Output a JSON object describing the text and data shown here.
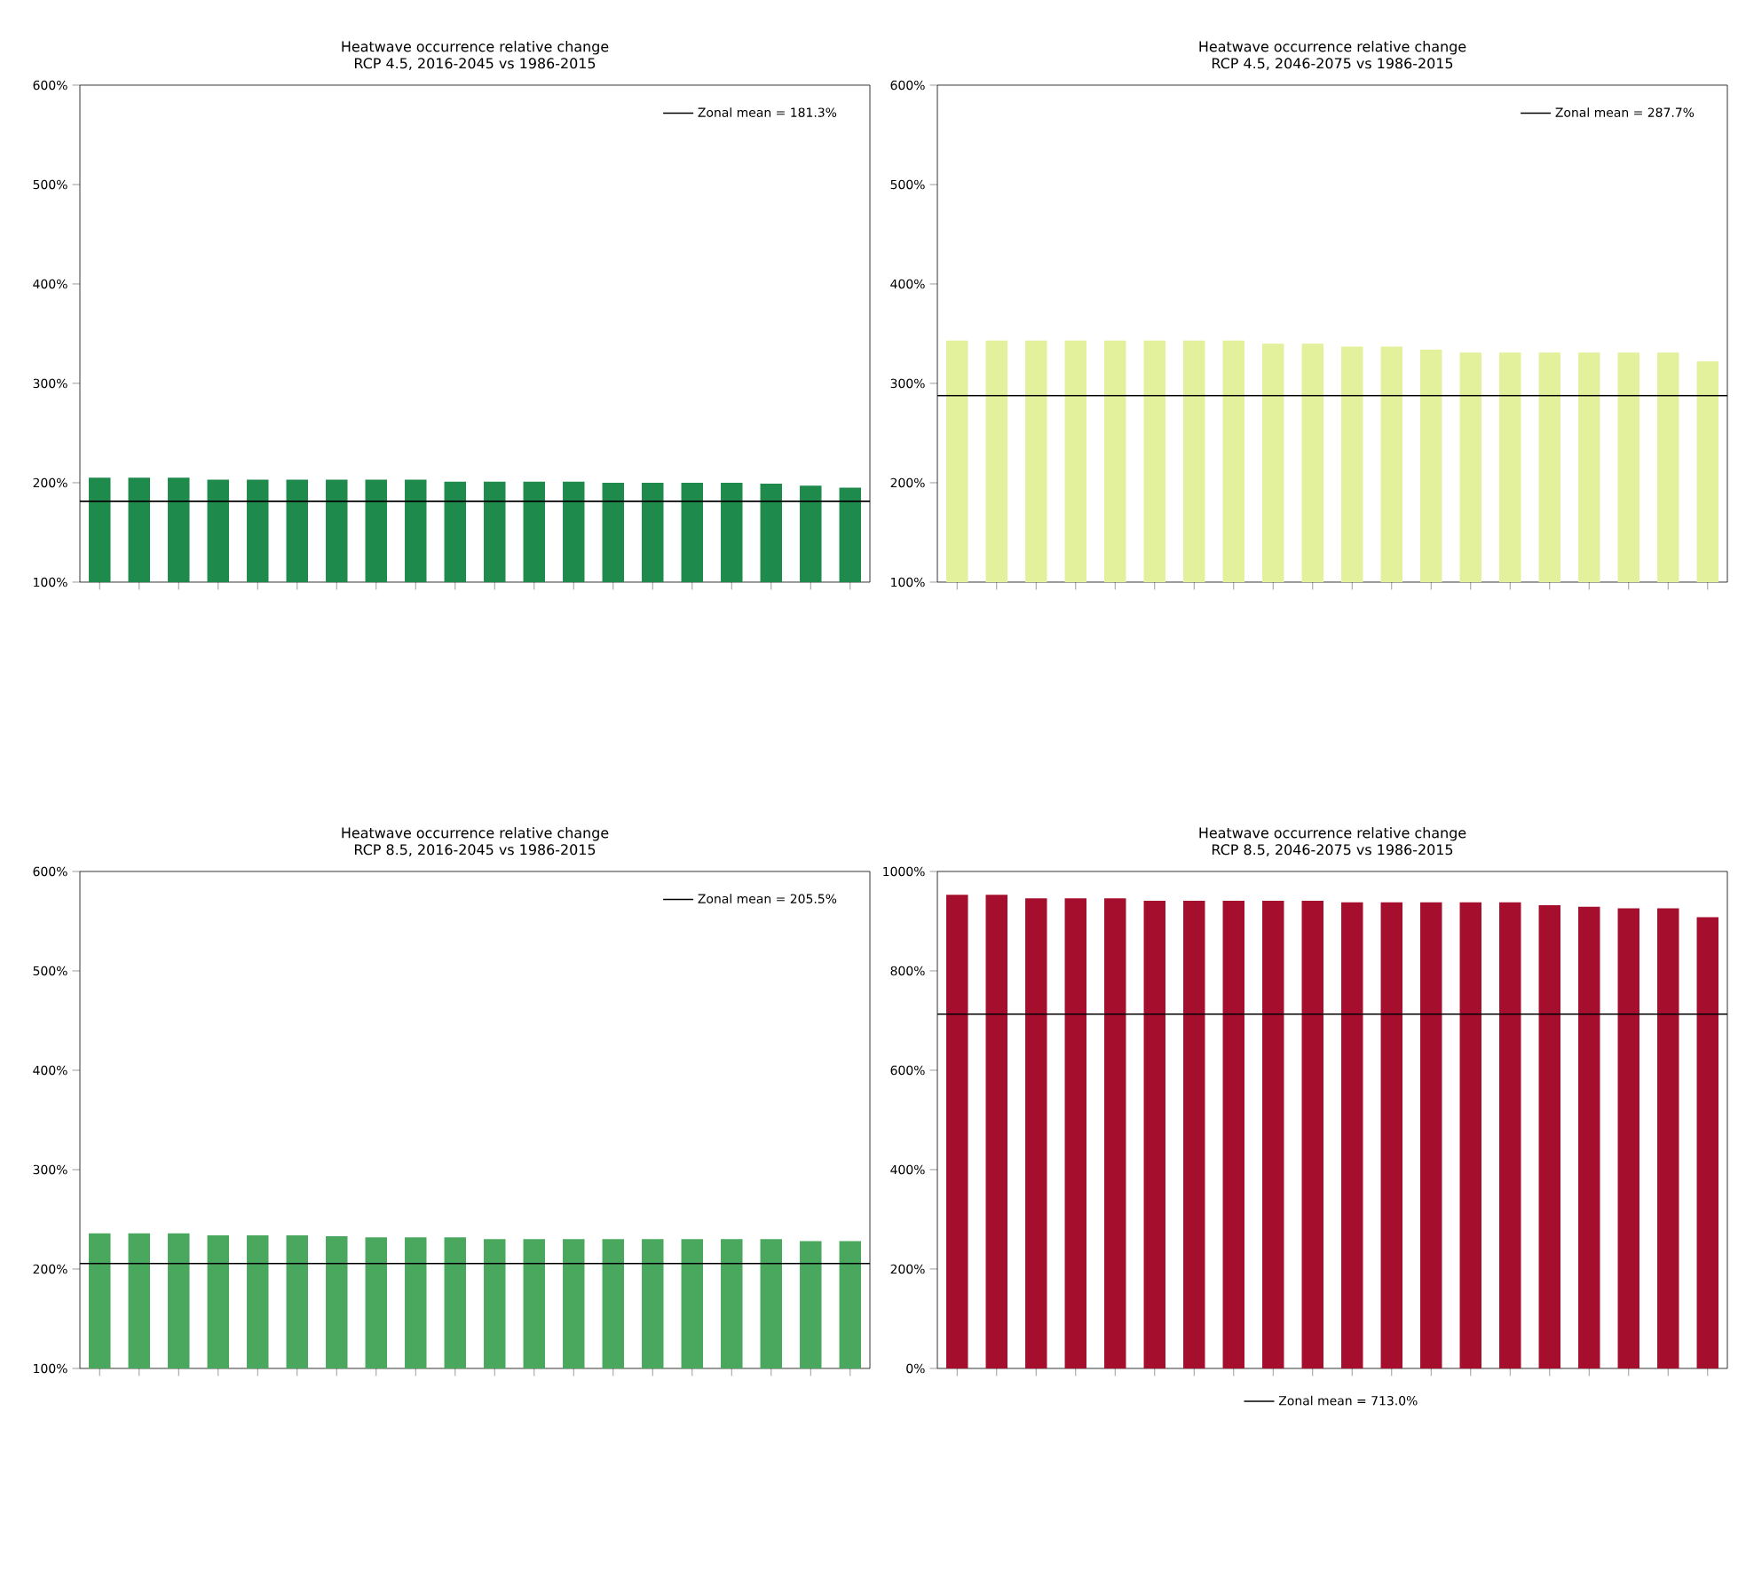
{
  "chart_data": [
    {
      "type": "bar",
      "title": "Heatwave occurrence relative change",
      "subtitle": "RCP 4.5, 2016-2045 vs 1986-2015",
      "categories": [
        null,
        null,
        null,
        null,
        null,
        null,
        null,
        null,
        null,
        null,
        null,
        null,
        null,
        null,
        null,
        null,
        null,
        null,
        null,
        null
      ],
      "values": [
        205,
        205,
        205,
        203,
        203,
        203,
        203,
        203,
        203,
        201,
        201,
        201,
        201,
        200,
        200,
        200,
        200,
        199,
        197,
        195
      ],
      "color": "#1e8a4c",
      "ylim": [
        100,
        600
      ],
      "yticks": [
        {
          "value": 100,
          "label": "100%"
        },
        {
          "value": 200,
          "label": "200%"
        },
        {
          "value": 300,
          "label": "300%"
        },
        {
          "value": 400,
          "label": "400%"
        },
        {
          "value": 500,
          "label": "500%"
        },
        {
          "value": 600,
          "label": "600%"
        }
      ],
      "ref_lines": [
        {
          "axis": "y",
          "value": 181.3,
          "label": "Zonal mean = 181.3%",
          "color": "#000000"
        }
      ],
      "legend": "top right"
    },
    {
      "type": "bar",
      "title": "Heatwave occurrence relative change",
      "subtitle": "RCP 4.5, 2046-2075 vs 1986-2015",
      "categories": [
        null,
        null,
        null,
        null,
        null,
        null,
        null,
        null,
        null,
        null,
        null,
        null,
        null,
        null,
        null,
        null,
        null,
        null,
        null,
        null
      ],
      "values": [
        343,
        343,
        343,
        343,
        343,
        343,
        343,
        343,
        340,
        340,
        337,
        337,
        334,
        331,
        331,
        331,
        331,
        331,
        331,
        322
      ],
      "color": "#e3f19c",
      "ylim": [
        100,
        600
      ],
      "yticks": [
        {
          "value": 100,
          "label": "100%"
        },
        {
          "value": 200,
          "label": "200%"
        },
        {
          "value": 300,
          "label": "300%"
        },
        {
          "value": 400,
          "label": "400%"
        },
        {
          "value": 500,
          "label": "500%"
        },
        {
          "value": 600,
          "label": "600%"
        }
      ],
      "ref_lines": [
        {
          "axis": "y",
          "value": 287.7,
          "label": "Zonal mean = 287.7%",
          "color": "#000000"
        }
      ],
      "legend": "top right"
    },
    {
      "type": "bar",
      "title": "Heatwave occurrence relative change",
      "subtitle": "RCP 8.5, 2016-2045 vs 1986-2015",
      "categories": [
        null,
        null,
        null,
        null,
        null,
        null,
        null,
        null,
        null,
        null,
        null,
        null,
        null,
        null,
        null,
        null,
        null,
        null,
        null,
        null
      ],
      "values": [
        236,
        236,
        236,
        234,
        234,
        234,
        233,
        232,
        232,
        232,
        230,
        230,
        230,
        230,
        230,
        230,
        230,
        230,
        228,
        228
      ],
      "color": "#4aa85e",
      "ylim": [
        100,
        600
      ],
      "yticks": [
        {
          "value": 100,
          "label": "100%"
        },
        {
          "value": 200,
          "label": "200%"
        },
        {
          "value": 300,
          "label": "300%"
        },
        {
          "value": 400,
          "label": "400%"
        },
        {
          "value": 500,
          "label": "500%"
        },
        {
          "value": 600,
          "label": "600%"
        }
      ],
      "ref_lines": [
        {
          "axis": "y",
          "value": 205.5,
          "label": "Zonal mean = 205.5%",
          "color": "#000000"
        }
      ],
      "legend": "top right"
    },
    {
      "type": "bar",
      "title": "Heatwave occurrence relative change",
      "subtitle": "RCP 8.5, 2046-2075 vs 1986-2015",
      "categories": [
        null,
        null,
        null,
        null,
        null,
        null,
        null,
        null,
        null,
        null,
        null,
        null,
        null,
        null,
        null,
        null,
        null,
        null,
        null,
        null
      ],
      "values": [
        953,
        953,
        946,
        946,
        946,
        941,
        941,
        941,
        941,
        941,
        938,
        938,
        938,
        938,
        938,
        932,
        929,
        926,
        926,
        908
      ],
      "color": "#a50f2d",
      "ylim": [
        0,
        1000
      ],
      "yticks": [
        {
          "value": 0,
          "label": "0%"
        },
        {
          "value": 200,
          "label": "200%"
        },
        {
          "value": 400,
          "label": "400%"
        },
        {
          "value": 600,
          "label": "600%"
        },
        {
          "value": 800,
          "label": "800%"
        },
        {
          "value": 1000,
          "label": "1000%"
        }
      ],
      "ref_lines": [
        {
          "axis": "y",
          "value": 713.0,
          "label": "Zonal mean = 713.0%",
          "color": "#000000"
        }
      ],
      "legend": "bottom"
    }
  ]
}
